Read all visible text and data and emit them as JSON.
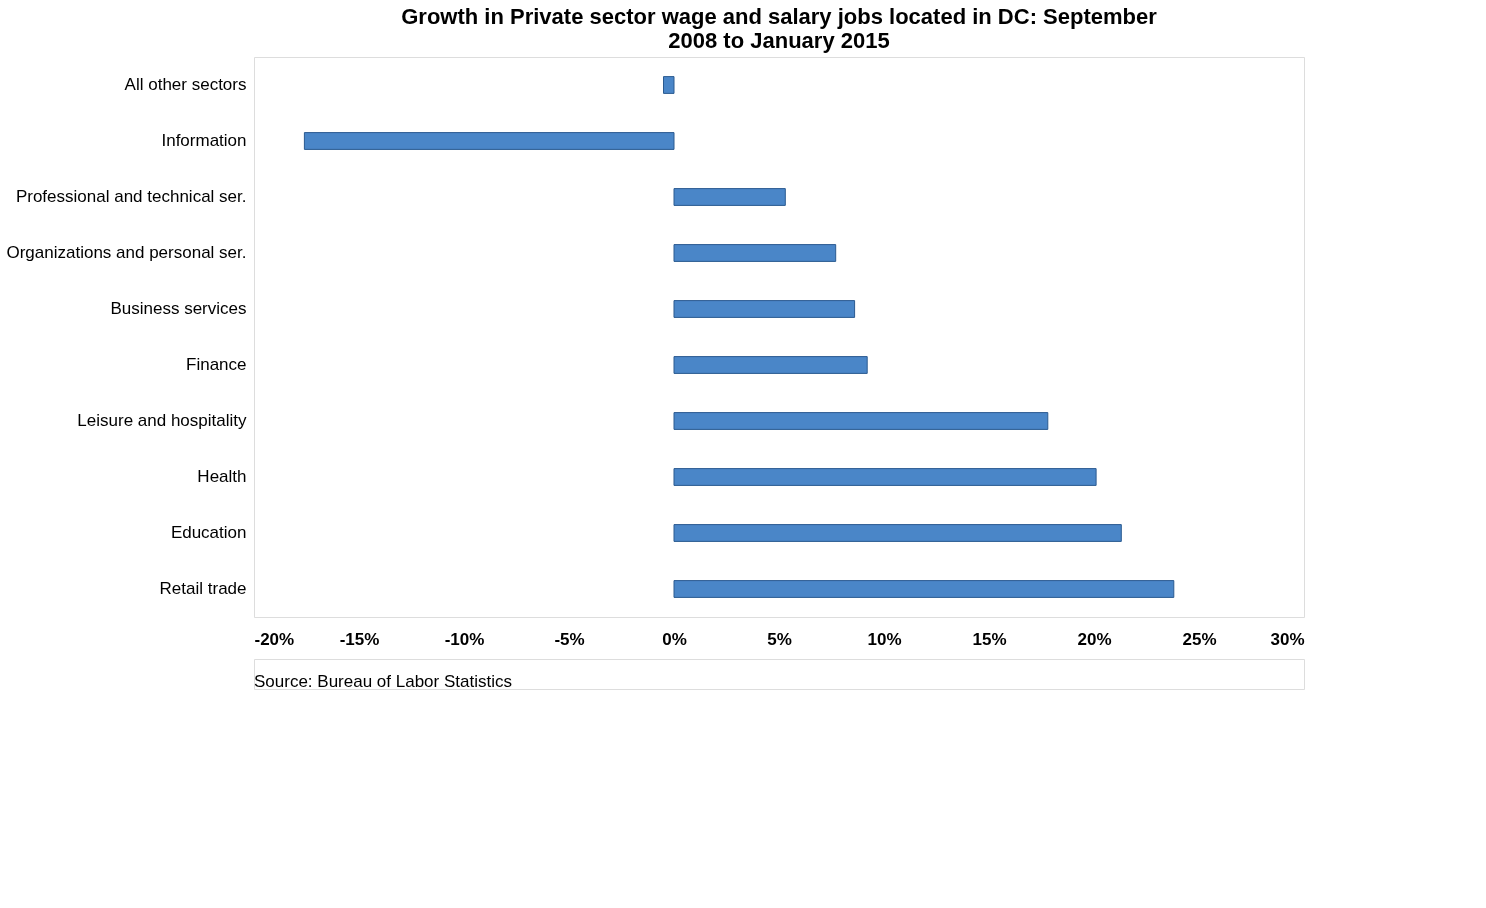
{
  "chart_data": {
    "type": "bar",
    "orientation": "horizontal",
    "title": [
      "Growth in Private sector wage and salary jobs located in DC: September",
      "2008 to January 2015"
    ],
    "categories": [
      "All other sectors",
      "Information",
      "Professional and technical ser.",
      "Organizations and personal ser.",
      "Business services",
      "Finance",
      "Leisure and hospitality",
      "Health",
      "Education",
      "Retail trade"
    ],
    "values": [
      -0.5,
      -17.6,
      5.3,
      7.7,
      8.6,
      9.2,
      17.8,
      20.1,
      21.3,
      23.8
    ],
    "color": "#4a86c8",
    "xlim": [
      -20,
      30
    ],
    "xticks": [
      {
        "value": -20,
        "label": "-20%"
      },
      {
        "value": -15,
        "label": "-15%"
      },
      {
        "value": -10,
        "label": "-10%"
      },
      {
        "value": -5,
        "label": "-5%"
      },
      {
        "value": 0,
        "label": "0%"
      },
      {
        "value": 5,
        "label": "5%"
      },
      {
        "value": 10,
        "label": "10%"
      },
      {
        "value": 15,
        "label": "15%"
      },
      {
        "value": 20,
        "label": "20%"
      },
      {
        "value": 25,
        "label": "25%"
      },
      {
        "value": 30,
        "label": "30%"
      }
    ],
    "grid": false,
    "annotations": [
      "Source: Bureau of Labor Statistics"
    ]
  }
}
